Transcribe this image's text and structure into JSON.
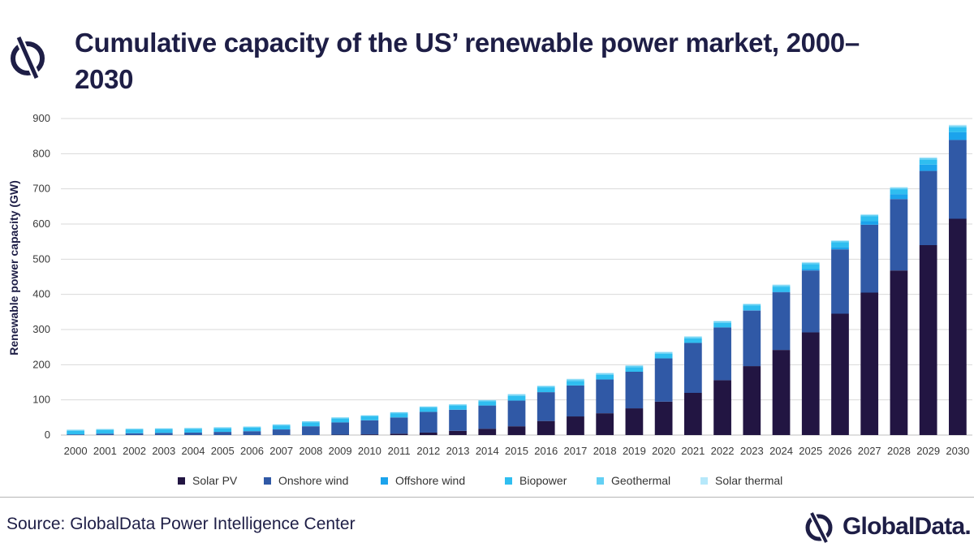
{
  "header": {
    "title": "Cumulative capacity of the US’ renewable power market, 2000–2030"
  },
  "footer": {
    "source": "Source: GlobalData Power Intelligence Center",
    "logo_text": "GlobalData."
  },
  "colors": {
    "Solar PV": "#221542",
    "Onshore wind": "#3059a6",
    "Offshore wind": "#1ba3ec",
    "Biopower": "#2fbef0",
    "Geothermal": "#63d0f4",
    "Solar thermal": "#b6e8fa",
    "title": "#1e1e46",
    "grid": "#d9d9d9"
  },
  "chart_data": {
    "type": "bar",
    "stacked": true,
    "title": "Cumulative capacity of the US’ renewable power market, 2000–2030",
    "xlabel": "",
    "ylabel": "Renewable power capacity (GW)",
    "ylim": [
      0,
      900
    ],
    "yticks": [
      0,
      100,
      200,
      300,
      400,
      500,
      600,
      700,
      800,
      900
    ],
    "grid": true,
    "legend_position": "bottom",
    "categories": [
      "2000",
      "2001",
      "2002",
      "2003",
      "2004",
      "2005",
      "2006",
      "2007",
      "2008",
      "2009",
      "2010",
      "2011",
      "2012",
      "2013",
      "2014",
      "2015",
      "2016",
      "2017",
      "2018",
      "2019",
      "2020",
      "2021",
      "2022",
      "2023",
      "2024",
      "2025",
      "2026",
      "2027",
      "2028",
      "2029",
      "2030"
    ],
    "series": [
      {
        "name": "Solar PV",
        "values": [
          0,
          0,
          0,
          0,
          0,
          0,
          0,
          0,
          0,
          1,
          2,
          4,
          7,
          12,
          18,
          25,
          40,
          53,
          62,
          76,
          95,
          120,
          156,
          196,
          242,
          292,
          345,
          405,
          468,
          540,
          615
        ]
      },
      {
        "name": "Onshore wind",
        "values": [
          2,
          4,
          5,
          6,
          7,
          9,
          11,
          16,
          25,
          35,
          40,
          46,
          59,
          60,
          66,
          73,
          82,
          88,
          96,
          104,
          123,
          142,
          150,
          158,
          164,
          176,
          183,
          193,
          203,
          211,
          224
        ]
      },
      {
        "name": "Offshore wind",
        "values": [
          0,
          0,
          0,
          0,
          0,
          0,
          0,
          0,
          0,
          0,
          0,
          0,
          0,
          0,
          0,
          0,
          0,
          0,
          0,
          0,
          0,
          0,
          0,
          1,
          2,
          4,
          6,
          10,
          14,
          18,
          22
        ]
      },
      {
        "name": "Biopower",
        "values": [
          10,
          10,
          10,
          10,
          10,
          10,
          10,
          11,
          11,
          11,
          11,
          12,
          12,
          12,
          12,
          13,
          13,
          13,
          13,
          13,
          13,
          13,
          13,
          13,
          14,
          14,
          14,
          14,
          14,
          14,
          14
        ]
      },
      {
        "name": "Geothermal",
        "values": [
          3,
          3,
          3,
          3,
          3,
          3,
          3,
          3,
          3,
          3,
          3,
          3,
          3,
          3,
          3,
          4,
          4,
          4,
          4,
          4,
          4,
          4,
          4,
          4,
          4,
          4,
          4,
          4,
          4,
          4,
          4
        ]
      },
      {
        "name": "Solar thermal",
        "values": [
          0,
          0,
          0,
          0,
          0,
          0,
          0,
          0,
          0,
          0,
          0,
          0,
          0,
          1,
          1,
          2,
          2,
          2,
          2,
          2,
          2,
          2,
          2,
          2,
          2,
          2,
          2,
          2,
          2,
          3,
          3
        ]
      }
    ]
  }
}
